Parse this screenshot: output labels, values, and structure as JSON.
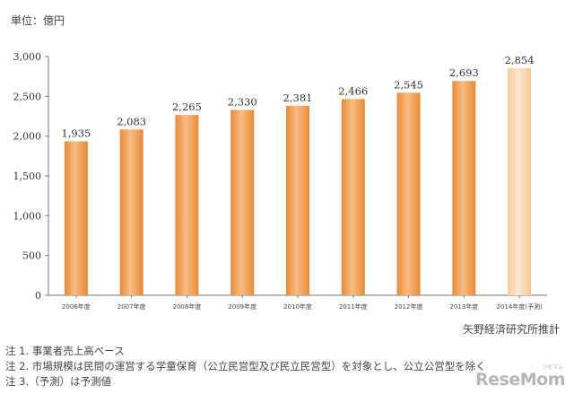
{
  "unit_label": "単位：億円",
  "source": "矢野経済研究所推計",
  "notes": [
    "注 1. 事業者売上高ベース",
    "注 2. 市場規模は民間の運営する学童保育（公立民営型及び民立民営型）を対象とし、公立公営型を除く",
    "注 3.（予測）は予測値"
  ],
  "logo": {
    "text": "ReseMom",
    "small": "リセマム"
  },
  "colors": {
    "bar": "#f0a25a",
    "bar_forecast": "#fbd9b3",
    "axis": "#777777"
  },
  "chart_data": {
    "type": "bar",
    "categories": [
      "2006年度",
      "2007年度",
      "2008年度",
      "2009年度",
      "2010年度",
      "2011年度",
      "2012年度",
      "2013年度",
      "2014年度(予測)"
    ],
    "values": [
      1935,
      2083,
      2265,
      2330,
      2381,
      2466,
      2545,
      2693,
      2854
    ],
    "data_labels": [
      "1,935",
      "2,083",
      "2,265",
      "2,330",
      "2,381",
      "2,466",
      "2,545",
      "2,693",
      "2,854"
    ],
    "forecast": [
      false,
      false,
      false,
      false,
      false,
      false,
      false,
      false,
      true
    ],
    "yticks": [
      0,
      500,
      1000,
      1500,
      2000,
      2500,
      3000
    ],
    "ytick_labels": [
      "0",
      "500",
      "1,000",
      "1,500",
      "2,000",
      "2,500",
      "3,000"
    ],
    "ylim": [
      0,
      3000
    ],
    "grid": false,
    "legend": "none"
  }
}
